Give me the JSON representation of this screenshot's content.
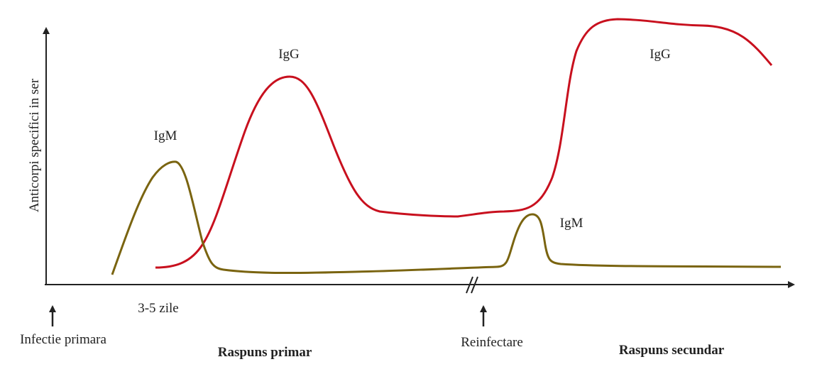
{
  "axis": {
    "ylabel": "Anticorpi specifici in ser"
  },
  "curves": {
    "igm_primary_label": "IgM",
    "igg_primary_label": "IgG",
    "igm_secondary_label": "IgM",
    "igg_secondary_label": "IgG"
  },
  "annotations": {
    "duration": "3-5 zile",
    "infection": "Infectie primara",
    "reinfection": "Reinfectare",
    "primary_response": "Raspuns primar",
    "secondary_response": "Raspuns secundar"
  },
  "colors": {
    "igg": "#c8101e",
    "igm": "#7a6410",
    "axis": "#222222"
  }
}
